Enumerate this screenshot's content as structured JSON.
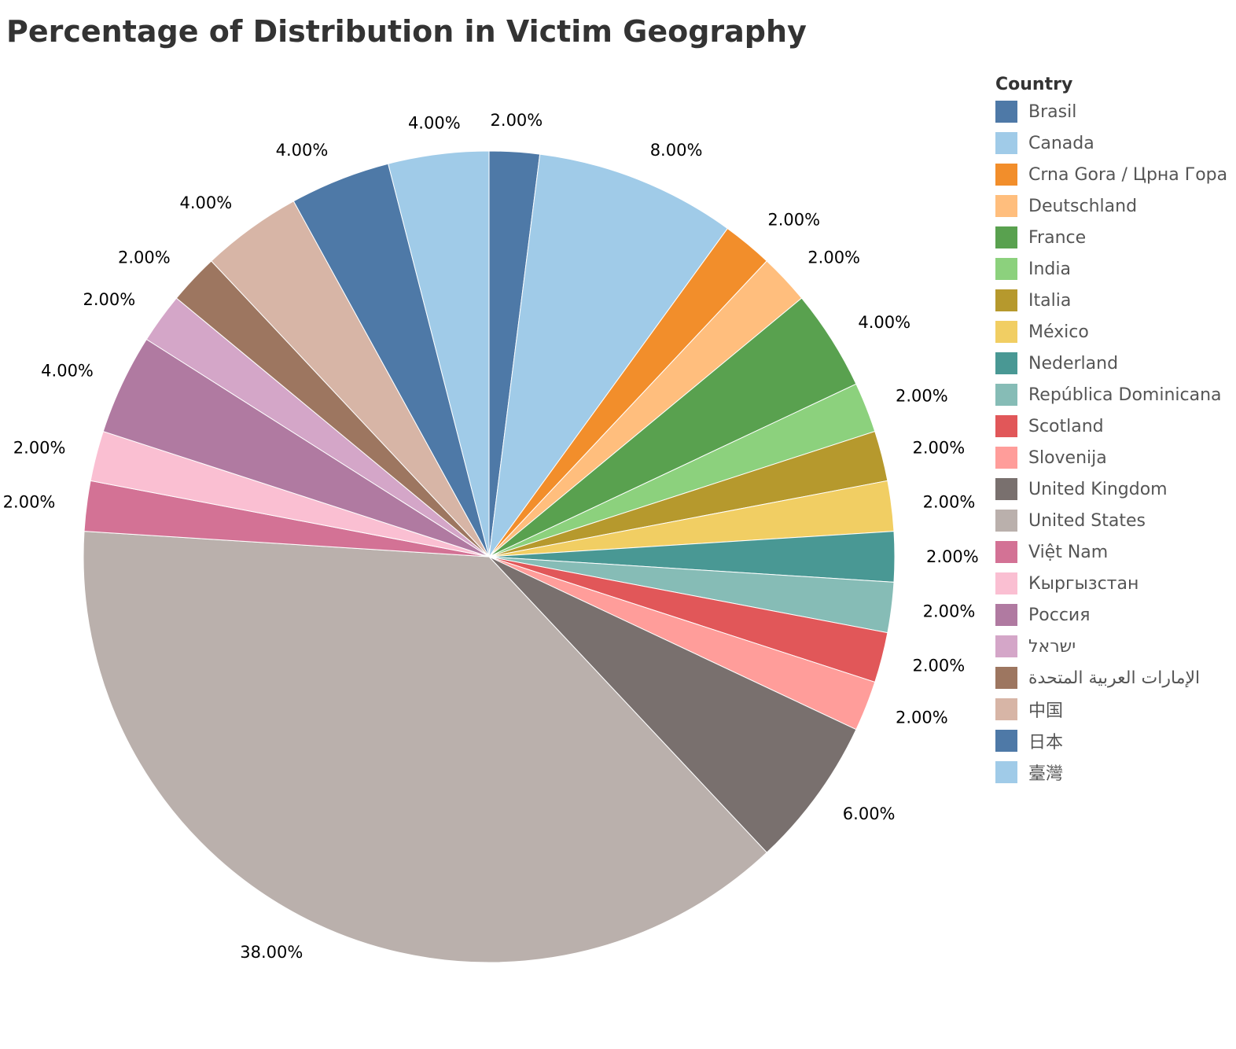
{
  "chart_data": {
    "type": "pie",
    "title": "Percentage of Distribution in Victim Geography",
    "legend_title": "Country",
    "legend_placement": "right",
    "start": "12 o'clock, clockwise",
    "slices": [
      {
        "name": "Brasil",
        "value": 2.0,
        "label": "2.00%",
        "color": "#4e79a7"
      },
      {
        "name": "Canada",
        "value": 8.0,
        "label": "8.00%",
        "color": "#a0cbe8"
      },
      {
        "name": "Crna Gora / Црна Гора",
        "value": 2.0,
        "label": "2.00%",
        "color": "#f28e2b"
      },
      {
        "name": "Deutschland",
        "value": 2.0,
        "label": "2.00%",
        "color": "#ffbe7d"
      },
      {
        "name": "France",
        "value": 4.0,
        "label": "4.00%",
        "color": "#59a14f"
      },
      {
        "name": "India",
        "value": 2.0,
        "label": "2.00%",
        "color": "#8cd17d"
      },
      {
        "name": "Italia",
        "value": 2.0,
        "label": "2.00%",
        "color": "#b6992d"
      },
      {
        "name": "México",
        "value": 2.0,
        "label": "2.00%",
        "color": "#f1ce63"
      },
      {
        "name": "Nederland",
        "value": 2.0,
        "label": "2.00%",
        "color": "#499894"
      },
      {
        "name": "República Dominicana",
        "value": 2.0,
        "label": "2.00%",
        "color": "#86bcb6"
      },
      {
        "name": "Scotland",
        "value": 2.0,
        "label": "2.00%",
        "color": "#e15759"
      },
      {
        "name": "Slovenija",
        "value": 2.0,
        "label": "2.00%",
        "color": "#ff9d9a"
      },
      {
        "name": "United Kingdom",
        "value": 6.0,
        "label": "6.00%",
        "color": "#79706e"
      },
      {
        "name": "United States",
        "value": 38.0,
        "label": "38.00%",
        "color": "#bab0ac"
      },
      {
        "name": "Việt Nam",
        "value": 2.0,
        "label": "2.00%",
        "color": "#d37295"
      },
      {
        "name": "Кыргызстан",
        "value": 2.0,
        "label": "2.00%",
        "color": "#fabfd2"
      },
      {
        "name": "Россия",
        "value": 4.0,
        "label": "4.00%",
        "color": "#b07aa1"
      },
      {
        "name": "ישראל",
        "value": 2.0,
        "label": "2.00%",
        "color": "#d4a6c8"
      },
      {
        "name": "الإمارات العربية المتحدة",
        "value": 2.0,
        "label": "2.00%",
        "color": "#9d7660"
      },
      {
        "name": "中国",
        "value": 4.0,
        "label": "4.00%",
        "color": "#d7b5a6"
      },
      {
        "name": "日本",
        "value": 4.0,
        "label": "4.00%",
        "color": "#4e79a7"
      },
      {
        "name": "臺灣",
        "value": 4.0,
        "label": "4.00%",
        "color": "#a0cbe8"
      }
    ]
  }
}
